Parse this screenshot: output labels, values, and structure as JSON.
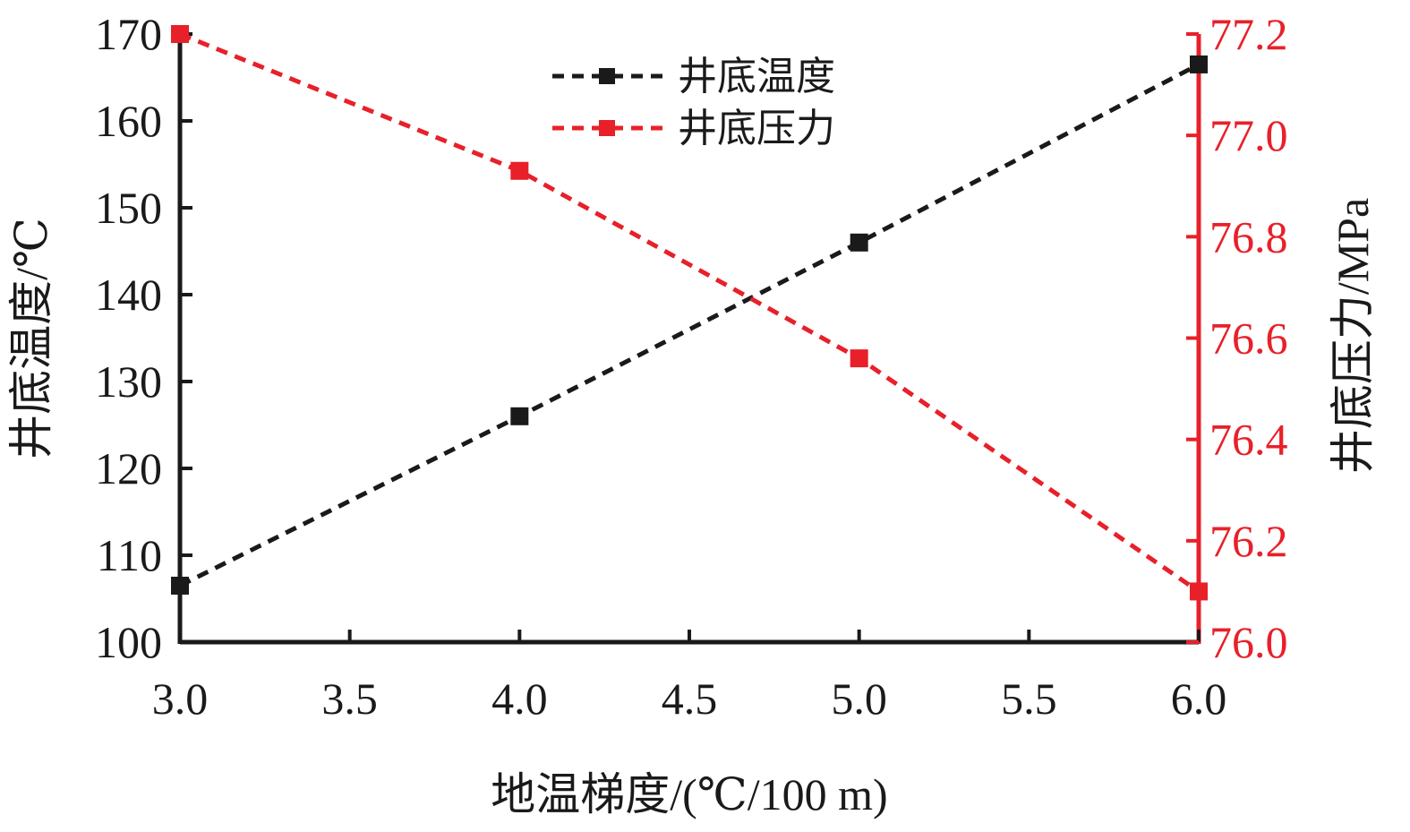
{
  "colors": {
    "left_axis": "#1a1a1a",
    "right_axis": "#e8202a",
    "series_temperature": "#1a1a1a",
    "series_pressure": "#e8202a"
  },
  "chart_data": {
    "type": "line",
    "xlabel": "地温梯度/(℃/100 m)",
    "ylabel_left": "井底温度/℃",
    "ylabel_right": "井底压力/MPa",
    "xlim": [
      3.0,
      6.0
    ],
    "ylim_left": [
      100,
      170
    ],
    "ylim_right": [
      76.0,
      77.2
    ],
    "x_ticks": [
      "3.0",
      "3.5",
      "4.0",
      "4.5",
      "5.0",
      "5.5",
      "6.0"
    ],
    "y_left_ticks": [
      "100",
      "110",
      "120",
      "130",
      "140",
      "150",
      "160",
      "170"
    ],
    "y_right_ticks": [
      "76.0",
      "76.2",
      "76.4",
      "76.6",
      "76.8",
      "77.0",
      "77.2"
    ],
    "legend_position": "top-center",
    "grid": false,
    "x": [
      3.0,
      4.0,
      5.0,
      6.0
    ],
    "series": [
      {
        "name": "井底温度",
        "axis": "left",
        "marker": "square",
        "line_style": "dashed",
        "values": [
          106.5,
          126.0,
          146.0,
          166.5
        ]
      },
      {
        "name": "井底压力",
        "axis": "right",
        "marker": "square",
        "line_style": "dashed",
        "values": [
          77.2,
          76.93,
          76.56,
          76.1
        ]
      }
    ]
  }
}
